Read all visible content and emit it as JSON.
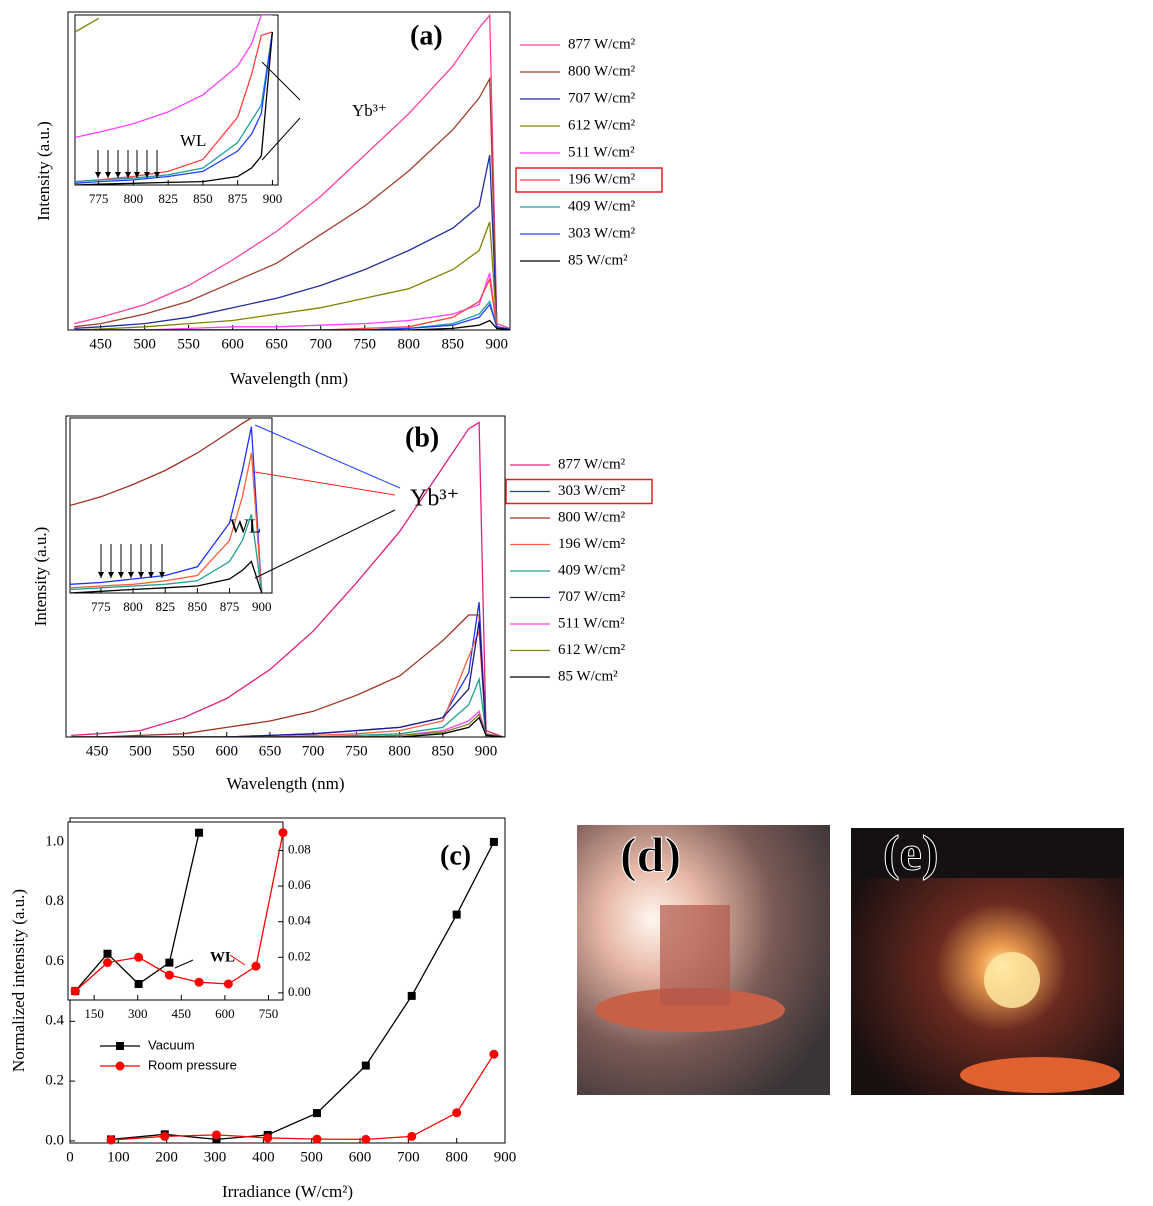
{
  "chart_data": [
    {
      "type": "line",
      "label": "(a)",
      "xlabel": "Wavelength (nm)",
      "ylabel": "Intensity (a.u.)",
      "x": [
        420,
        450,
        500,
        550,
        600,
        650,
        700,
        750,
        800,
        850,
        880,
        892,
        900,
        920
      ],
      "xlim": [
        413,
        915
      ],
      "ylim": [
        0,
        1
      ],
      "xticks": [
        450,
        500,
        550,
        600,
        650,
        700,
        750,
        800,
        850,
        900
      ],
      "legend_box": 5,
      "series": [
        {
          "name": "877 W/cm²",
          "color": "#ff3fa0",
          "values": [
            0.02,
            0.04,
            0.08,
            0.14,
            0.22,
            0.31,
            0.42,
            0.55,
            0.68,
            0.83,
            0.95,
            0.99,
            0.02,
            0
          ]
        },
        {
          "name": "800 W/cm²",
          "color": "#a0402a",
          "values": [
            0.01,
            0.02,
            0.05,
            0.09,
            0.15,
            0.21,
            0.3,
            0.39,
            0.5,
            0.63,
            0.73,
            0.79,
            0.01,
            0
          ]
        },
        {
          "name": "707 W/cm²",
          "color": "#1f2f9f",
          "values": [
            0.005,
            0.01,
            0.02,
            0.04,
            0.07,
            0.1,
            0.14,
            0.19,
            0.25,
            0.32,
            0.39,
            0.55,
            0.01,
            0
          ]
        },
        {
          "name": "612 W/cm²",
          "color": "#808000",
          "values": [
            0,
            0.003,
            0.01,
            0.02,
            0.03,
            0.05,
            0.07,
            0.1,
            0.13,
            0.19,
            0.25,
            0.34,
            0.01,
            0
          ]
        },
        {
          "name": "511 W/cm²",
          "color": "#ff40ff",
          "values": [
            0,
            0,
            0,
            0.005,
            0.01,
            0.01,
            0.015,
            0.02,
            0.03,
            0.05,
            0.08,
            0.18,
            0.01,
            0
          ]
        },
        {
          "name": "196 W/cm²",
          "color": "#ff4040",
          "values": [
            0,
            0,
            0,
            0,
            0,
            0,
            0,
            0.005,
            0.01,
            0.04,
            0.09,
            0.16,
            0.01,
            0
          ]
        },
        {
          "name": "409 W/cm²",
          "color": "#20a0a0",
          "values": [
            0,
            0,
            0,
            0,
            0,
            0,
            0,
            0,
            0.005,
            0.02,
            0.05,
            0.09,
            0.01,
            0
          ]
        },
        {
          "name": "303 W/cm²",
          "color": "#2040ff",
          "values": [
            0,
            0,
            0,
            0,
            0,
            0,
            0,
            0,
            0.005,
            0.015,
            0.04,
            0.08,
            0.01,
            0
          ]
        },
        {
          "name": "85  W/cm²",
          "color": "#000000",
          "values": [
            0,
            0,
            0,
            0,
            0,
            0,
            0,
            0,
            0,
            0.005,
            0.015,
            0.03,
            0.005,
            0
          ]
        }
      ]
    },
    {
      "type": "line",
      "x": [
        758,
        775,
        800,
        825,
        850,
        875,
        885,
        892,
        900
      ],
      "xlim": [
        758,
        904
      ],
      "ylim": [
        0,
        1
      ],
      "xticks": [
        775,
        800,
        825,
        850,
        875,
        900
      ],
      "annotations": [
        "WL",
        "Yb³⁺"
      ],
      "series": [
        {
          "color": "#808000",
          "values": [
            0.9,
            0.98,
            null,
            null,
            null,
            null,
            null,
            null,
            null
          ]
        },
        {
          "color": "#ff40ff",
          "values": [
            0.28,
            0.31,
            0.36,
            0.43,
            0.53,
            0.7,
            0.83,
            1.0,
            1.0
          ]
        },
        {
          "color": "#ff4040",
          "values": [
            0.02,
            0.03,
            0.05,
            0.08,
            0.15,
            0.4,
            0.65,
            0.88,
            0.9
          ]
        },
        {
          "color": "#20a0a0",
          "values": [
            0.02,
            0.03,
            0.04,
            0.06,
            0.1,
            0.25,
            0.38,
            0.47,
            0.9
          ]
        },
        {
          "color": "#2040ff",
          "values": [
            0.01,
            0.02,
            0.03,
            0.05,
            0.08,
            0.2,
            0.3,
            0.42,
            0.9
          ]
        },
        {
          "color": "#000000",
          "values": [
            0,
            0.005,
            0.01,
            0.015,
            0.02,
            0.05,
            0.1,
            0.17,
            0.9
          ]
        }
      ]
    },
    {
      "type": "line",
      "label": "(b)",
      "xlabel": "Wavelength (nm)",
      "ylabel": "Intensity (a.u.)",
      "x": [
        420,
        450,
        500,
        550,
        600,
        650,
        700,
        750,
        800,
        850,
        880,
        892,
        900,
        920
      ],
      "xlim": [
        414,
        922
      ],
      "ylim": [
        0,
        1
      ],
      "xticks": [
        450,
        500,
        550,
        600,
        650,
        700,
        750,
        800,
        850,
        900
      ],
      "legend_box": 1,
      "series": [
        {
          "name": "877 W/cm²",
          "color": "#e0207f",
          "values": [
            0.005,
            0.01,
            0.02,
            0.06,
            0.12,
            0.21,
            0.33,
            0.48,
            0.64,
            0.84,
            0.96,
            0.98,
            0.02,
            0
          ]
        },
        {
          "name": "303 W/cm²",
          "color": "#2030ff",
          "values": [
            0,
            0,
            0,
            0,
            0,
            0.005,
            0.01,
            0.02,
            0.03,
            0.06,
            0.2,
            0.42,
            0.01,
            0
          ]
        },
        {
          "name": "800 W/cm²",
          "color": "#a03020",
          "values": [
            0,
            0,
            0.005,
            0.01,
            0.03,
            0.05,
            0.08,
            0.13,
            0.19,
            0.3,
            0.38,
            0.38,
            0.01,
            0
          ]
        },
        {
          "name": "196 W/cm²",
          "color": "#ff6040",
          "values": [
            0,
            0,
            0,
            0,
            0,
            0,
            0.005,
            0.01,
            0.02,
            0.05,
            0.25,
            0.33,
            0.01,
            0
          ]
        },
        {
          "name": "409 W/cm²",
          "color": "#20a090",
          "values": [
            0,
            0,
            0,
            0,
            0,
            0,
            0,
            0.005,
            0.01,
            0.03,
            0.1,
            0.18,
            0.01,
            0
          ]
        },
        {
          "name": "707 W/cm²",
          "color": "#1a1a8a",
          "values": [
            0,
            0,
            0,
            0,
            0,
            0.005,
            0.01,
            0.02,
            0.03,
            0.06,
            0.15,
            0.36,
            0.01,
            0
          ]
        },
        {
          "name": "511 W/cm²",
          "color": "#ff40ff",
          "values": [
            0,
            0,
            0,
            0,
            0,
            0,
            0,
            0,
            0.005,
            0.02,
            0.05,
            0.08,
            0.01,
            0
          ]
        },
        {
          "name": "612 W/cm²",
          "color": "#808020",
          "values": [
            0,
            0,
            0,
            0,
            0,
            0,
            0,
            0,
            0.005,
            0.015,
            0.04,
            0.07,
            0.01,
            0
          ]
        },
        {
          "name": "85 W/cm²",
          "color": "#000000",
          "values": [
            0,
            0,
            0,
            0,
            0,
            0,
            0,
            0,
            0,
            0.01,
            0.03,
            0.06,
            0.005,
            0
          ]
        }
      ]
    },
    {
      "type": "line",
      "x": [
        751,
        775,
        800,
        825,
        850,
        875,
        885,
        892,
        900
      ],
      "xlim": [
        751,
        908
      ],
      "ylim": [
        0,
        1
      ],
      "xticks": [
        775,
        800,
        825,
        850,
        875,
        900
      ],
      "annotations": [
        "WL",
        "Yb³⁺"
      ],
      "series": [
        {
          "color": "#a03020",
          "values": [
            0.5,
            0.55,
            0.62,
            0.7,
            0.8,
            0.92,
            0.97,
            1.0,
            null
          ]
        },
        {
          "color": "#2030ff",
          "values": [
            0.05,
            0.06,
            0.08,
            0.1,
            0.15,
            0.4,
            0.7,
            0.95,
            0
          ]
        },
        {
          "color": "#ff6040",
          "values": [
            0.03,
            0.04,
            0.05,
            0.07,
            0.1,
            0.3,
            0.55,
            0.8,
            0
          ]
        },
        {
          "color": "#20a090",
          "values": [
            0.02,
            0.03,
            0.04,
            0.05,
            0.07,
            0.18,
            0.3,
            0.45,
            0
          ]
        },
        {
          "color": "#000000",
          "values": [
            0,
            0.01,
            0.02,
            0.03,
            0.04,
            0.08,
            0.13,
            0.18,
            0
          ]
        }
      ]
    },
    {
      "type": "line",
      "label": "(c)",
      "xlabel": "Irradiance (W/cm²)",
      "ylabel": "Normalized intensity (a.u.)",
      "markers": true,
      "x": [
        85,
        196,
        303,
        409,
        511,
        612,
        707,
        800,
        877
      ],
      "xlim": [
        0,
        900
      ],
      "ylim": [
        -0.007,
        1.08
      ],
      "xticks": [
        0,
        100,
        200,
        300,
        400,
        500,
        600,
        700,
        800,
        900
      ],
      "yticks": [
        {
          "value": 0,
          "label": "0.0"
        },
        {
          "value": 0.2,
          "label": "0.2"
        },
        {
          "value": 0.4,
          "label": "0.4"
        },
        {
          "value": 0.6,
          "label": "0.6"
        },
        {
          "value": 0.8,
          "label": "0.8"
        },
        {
          "value": 1,
          "label": "1.0"
        }
      ],
      "series": [
        {
          "name": "Vacuum",
          "color": "#000000",
          "marker": "square",
          "values": [
            0.005,
            0.022,
            0.005,
            0.02,
            0.093,
            0.252,
            0.485,
            0.757,
            1.0
          ]
        },
        {
          "name": "Room pressure",
          "color": "#ff0000",
          "marker": "circle",
          "values": [
            0.003,
            0.015,
            0.02,
            0.01,
            0.006,
            0.005,
            0.015,
            0.094,
            0.29
          ]
        }
      ]
    },
    {
      "type": "line",
      "markers": true,
      "x": [
        85,
        196,
        303,
        409,
        511,
        612,
        707,
        800
      ],
      "xlim": [
        60,
        800
      ],
      "y2lim": [
        -0.004,
        0.096
      ],
      "xticks": [
        150,
        300,
        450,
        600,
        750
      ],
      "y2ticks": [
        {
          "value": 0,
          "label": "0.00"
        },
        {
          "value": 0.02,
          "label": "0.02"
        },
        {
          "value": 0.04,
          "label": "0.04"
        },
        {
          "value": 0.06,
          "label": "0.06"
        },
        {
          "value": 0.08,
          "label": "0.08"
        }
      ],
      "annotations": [
        "WL"
      ],
      "series": [
        {
          "color": "#000000",
          "marker": "square",
          "axis": "y2",
          "values": [
            0.001,
            0.022,
            0.005,
            0.017,
            0.09,
            null,
            null,
            null
          ]
        },
        {
          "color": "#ff0000",
          "marker": "circle",
          "axis": "y2",
          "values": [
            0.001,
            0.017,
            0.02,
            0.01,
            0.006,
            0.005,
            0.015,
            0.09
          ]
        }
      ]
    }
  ],
  "photos": [
    {
      "label": "(d)"
    },
    {
      "label": "(e)"
    }
  ]
}
